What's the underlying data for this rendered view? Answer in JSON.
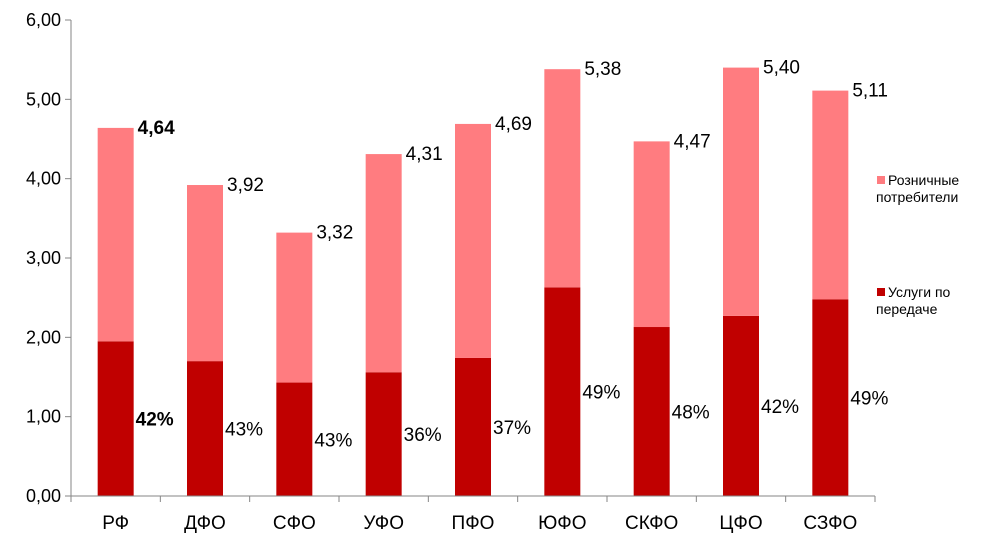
{
  "chart_data": {
    "type": "bar",
    "stacked": true,
    "categories": [
      "РФ",
      "ДФО",
      "СФО",
      "УФО",
      "ПФО",
      "ЮФО",
      "СКФО",
      "ЦФО",
      "СЗФО"
    ],
    "totals": [
      4.64,
      3.92,
      3.32,
      4.31,
      4.69,
      5.38,
      4.47,
      5.4,
      5.11
    ],
    "total_labels": [
      "4,64",
      "3,92",
      "3,32",
      "4,31",
      "4,69",
      "5,38",
      "4,47",
      "5,40",
      "5,11"
    ],
    "share_labels": [
      "42%",
      "43%",
      "43%",
      "36%",
      "37%",
      "49%",
      "48%",
      "42%",
      "49%"
    ],
    "series": [
      {
        "name": "Услуги по передаче",
        "name_lines": [
          "Услуги по",
          "передаче"
        ],
        "color": "#c00000",
        "values": [
          1.95,
          1.7,
          1.43,
          1.56,
          1.74,
          2.63,
          2.13,
          2.27,
          2.48
        ]
      },
      {
        "name": "Розничные потребители",
        "name_lines": [
          "Розничные",
          "потребители"
        ],
        "color": "#ff7c80",
        "values": [
          2.69,
          2.22,
          1.89,
          2.75,
          2.95,
          2.75,
          2.34,
          3.13,
          2.63
        ]
      }
    ],
    "ylim": [
      0,
      6
    ],
    "yticks": [
      0,
      1,
      2,
      3,
      4,
      5,
      6
    ],
    "ytick_labels": [
      "0,00",
      "1,00",
      "2,00",
      "3,00",
      "4,00",
      "5,00",
      "6,00"
    ],
    "highlight_category": "РФ",
    "legend_position": "right",
    "grid": false
  }
}
